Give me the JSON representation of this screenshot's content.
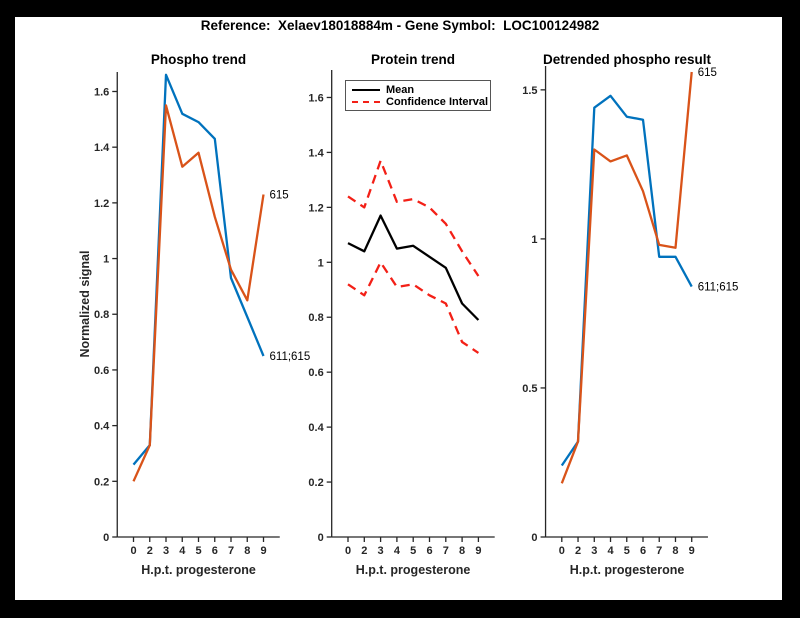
{
  "figure_title": "Reference:  Xelaev18018884m - Gene Symbol:  LOC100124982",
  "shared": {
    "xlabel": "H.p.t. progesterone",
    "ylabel": "Normalized signal",
    "x_tick_labels": [
      "0",
      "2",
      "3",
      "4",
      "5",
      "6",
      "7",
      "8",
      "9"
    ]
  },
  "colors": {
    "blue": "#0072BD",
    "orange": "#D95319",
    "red": "#f32017",
    "black": "#000000",
    "axis": "#262626"
  },
  "legend": {
    "mean_label": "Mean",
    "ci_label": "Confidence Interval"
  },
  "chart_data": [
    {
      "type": "line",
      "title": "Phospho trend",
      "xlabel": "H.p.t. progesterone",
      "ylabel": "Normalized signal",
      "categories": [
        "0",
        "2",
        "3",
        "4",
        "5",
        "6",
        "7",
        "8",
        "9"
      ],
      "y_ticks": [
        "0",
        "0.2",
        "0.4",
        "0.6",
        "0.8",
        "1",
        "1.2",
        "1.4",
        "1.6"
      ],
      "ylim": [
        0,
        1.67
      ],
      "grid": false,
      "series": [
        {
          "name": "611;615",
          "color_key": "blue",
          "dash": false,
          "end_label": "611;615",
          "values": [
            0.26,
            0.33,
            1.66,
            1.52,
            1.49,
            1.43,
            0.93,
            0.79,
            0.65
          ]
        },
        {
          "name": "615",
          "color_key": "orange",
          "dash": false,
          "end_label": "615",
          "values": [
            0.2,
            0.33,
            1.55,
            1.33,
            1.38,
            1.15,
            0.96,
            0.85,
            1.23
          ]
        }
      ]
    },
    {
      "type": "line",
      "title": "Protein trend",
      "xlabel": "H.p.t. progesterone",
      "ylabel": "",
      "categories": [
        "0",
        "2",
        "3",
        "4",
        "5",
        "6",
        "7",
        "8",
        "9"
      ],
      "y_ticks": [
        "0",
        "0.2",
        "0.4",
        "0.6",
        "0.8",
        "1",
        "1.2",
        "1.4",
        "1.6"
      ],
      "ylim": [
        0,
        1.7
      ],
      "grid": false,
      "legend_position": "northwest",
      "series": [
        {
          "name": "Mean",
          "color_key": "black",
          "dash": false,
          "end_label": "",
          "values": [
            1.07,
            1.04,
            1.17,
            1.05,
            1.06,
            1.02,
            0.98,
            0.85,
            0.79
          ]
        },
        {
          "name": "Confidence Interval upper",
          "color_key": "red",
          "dash": true,
          "end_label": "",
          "values": [
            1.24,
            1.2,
            1.37,
            1.22,
            1.23,
            1.2,
            1.14,
            1.04,
            0.95
          ]
        },
        {
          "name": "Confidence Interval lower",
          "color_key": "red",
          "dash": true,
          "end_label": "",
          "values": [
            0.92,
            0.88,
            1.0,
            0.91,
            0.92,
            0.88,
            0.85,
            0.71,
            0.67
          ]
        }
      ]
    },
    {
      "type": "line",
      "title": "Detrended phospho result",
      "xlabel": "H.p.t. progesterone",
      "ylabel": "",
      "categories": [
        "0",
        "2",
        "3",
        "4",
        "5",
        "6",
        "7",
        "8",
        "9"
      ],
      "y_ticks": [
        "0",
        "0.5",
        "1",
        "1.5"
      ],
      "ylim": [
        0,
        1.58
      ],
      "grid": false,
      "series": [
        {
          "name": "611;615",
          "color_key": "blue",
          "dash": false,
          "end_label": "611;615",
          "values": [
            0.24,
            0.32,
            1.44,
            1.48,
            1.41,
            1.4,
            0.94,
            0.94,
            0.84
          ]
        },
        {
          "name": "615",
          "color_key": "orange",
          "dash": false,
          "end_label": "615",
          "values": [
            0.18,
            0.32,
            1.3,
            1.26,
            1.28,
            1.16,
            0.98,
            0.97,
            1.56
          ]
        }
      ]
    }
  ]
}
